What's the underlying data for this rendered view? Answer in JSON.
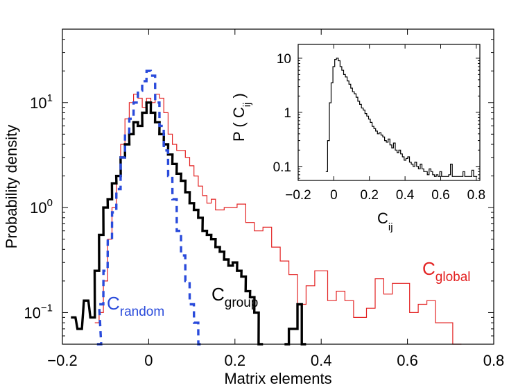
{
  "chart_data": [
    {
      "type": "line",
      "title": "",
      "xlabel": "Matrix elements",
      "ylabel": "Probability density",
      "xscale": "linear",
      "yscale": "log",
      "xlim": [
        -0.2,
        0.8
      ],
      "ylim": [
        0.05,
        50
      ],
      "xticks": [
        -0.2,
        0,
        0.2,
        0.4,
        0.6,
        0.8
      ],
      "xtick_labels": [
        "−0.2",
        "0",
        "0.2",
        "0.4",
        "0.6",
        "0.8"
      ],
      "yticks": [
        0.1,
        1,
        10
      ],
      "ytick_labels": [
        {
          "base": "10",
          "exp": "−1"
        },
        {
          "base": "10",
          "exp": "0"
        },
        {
          "base": "10",
          "exp": "1"
        }
      ],
      "series": [
        {
          "name": "C_global",
          "label": {
            "main": "C",
            "sub": "global"
          },
          "color": "#e32222",
          "style": "solid",
          "width": "thin",
          "label_position": "right",
          "x": [
            -0.12,
            -0.11,
            -0.1,
            -0.09,
            -0.08,
            -0.07,
            -0.06,
            -0.05,
            -0.04,
            -0.03,
            -0.02,
            -0.01,
            0.0,
            0.01,
            0.02,
            0.03,
            0.04,
            0.05,
            0.06,
            0.07,
            0.08,
            0.09,
            0.1,
            0.11,
            0.12,
            0.13,
            0.14,
            0.15,
            0.16,
            0.17,
            0.18,
            0.19,
            0.2,
            0.21,
            0.22,
            0.23,
            0.24,
            0.25,
            0.26,
            0.27,
            0.28,
            0.29,
            0.3,
            0.31,
            0.32,
            0.33,
            0.34,
            0.35,
            0.36,
            0.37,
            0.38,
            0.39,
            0.4,
            0.41,
            0.42,
            0.43,
            0.44,
            0.45,
            0.46,
            0.47,
            0.48,
            0.49,
            0.5,
            0.51,
            0.52,
            0.53,
            0.54,
            0.55,
            0.56,
            0.57,
            0.58,
            0.59,
            0.6,
            0.61,
            0.62,
            0.63,
            0.64,
            0.65,
            0.66,
            0.67,
            0.68,
            0.69,
            0.7,
            0.71,
            0.72
          ],
          "values": [
            0.08,
            0.1,
            0.2,
            0.5,
            1,
            2,
            4,
            7,
            10,
            12,
            11,
            9,
            11,
            10,
            12,
            11,
            8,
            5,
            4,
            3.5,
            3.5,
            3,
            2.5,
            2,
            1.6,
            1.3,
            1.1,
            1.2,
            0.95,
            0.95,
            1.0,
            1.0,
            1.0,
            1.08,
            1.08,
            0.72,
            0.72,
            0.6,
            0.6,
            0.65,
            0.65,
            0.42,
            0.42,
            0.31,
            0.31,
            0.23,
            0.23,
            0.12,
            0.12,
            0.18,
            0.18,
            0.25,
            0.25,
            0.25,
            0.13,
            0.13,
            0.16,
            0.16,
            0.13,
            0.13,
            0.09,
            0.09,
            0.09,
            0.11,
            0.11,
            0.21,
            0.21,
            0.15,
            0.15,
            0.19,
            0.19,
            0.19,
            0.19,
            0.1,
            0.1,
            0.12,
            0.12,
            0.13,
            0.13,
            0.08,
            0.08,
            0.08,
            0.08,
            0.05,
            0.05
          ]
        },
        {
          "name": "C_group",
          "label": {
            "main": "C",
            "sub": "group"
          },
          "color": "#000000",
          "style": "solid",
          "width": "thick",
          "x": [
            -0.175,
            -0.16,
            -0.145,
            -0.13,
            -0.12,
            -0.11,
            -0.1,
            -0.09,
            -0.08,
            -0.07,
            -0.06,
            -0.05,
            -0.04,
            -0.03,
            -0.02,
            -0.01,
            0.0,
            0.01,
            0.02,
            0.03,
            0.04,
            0.05,
            0.06,
            0.07,
            0.08,
            0.09,
            0.1,
            0.11,
            0.12,
            0.13,
            0.14,
            0.15,
            0.16,
            0.17,
            0.18,
            0.19,
            0.2,
            0.21,
            0.22,
            0.23,
            0.24,
            0.25,
            0.26
          ],
          "values": [
            0.09,
            0.07,
            0.13,
            0.09,
            0.25,
            0.55,
            1.0,
            1.2,
            1.7,
            2.0,
            3.0,
            4.0,
            5.0,
            6.5,
            6.0,
            8.0,
            10.0,
            8.0,
            6.5,
            5.0,
            4.0,
            3.2,
            2.6,
            2.1,
            1.8,
            1.4,
            1.1,
            0.95,
            0.8,
            0.6,
            0.55,
            0.5,
            0.42,
            0.38,
            0.32,
            0.28,
            0.3,
            0.25,
            0.22,
            0.16,
            0.14,
            0.1,
            0.05
          ],
          "extra_segments": [
            {
              "x": [
                0.32,
                0.33,
                0.34,
                0.35,
                0.36
              ],
              "values": [
                0.05,
                0.07,
                0.07,
                0.12,
                0.05
              ]
            }
          ]
        },
        {
          "name": "C_random",
          "label": {
            "main": "C",
            "sub": "random"
          },
          "color": "#2a4bdb",
          "style": "dashed",
          "width": "thick",
          "x": [
            -0.115,
            -0.11,
            -0.1,
            -0.09,
            -0.08,
            -0.07,
            -0.06,
            -0.05,
            -0.04,
            -0.03,
            -0.02,
            -0.01,
            0.0,
            0.01,
            0.02,
            0.03,
            0.04,
            0.05,
            0.06,
            0.07,
            0.08,
            0.09,
            0.1,
            0.11,
            0.12
          ],
          "values": [
            0.05,
            0.12,
            0.25,
            0.5,
            0.9,
            1.5,
            3.0,
            5.0,
            7.0,
            10.0,
            13.0,
            16.0,
            20.0,
            18.0,
            10.0,
            6.0,
            3.5,
            2.0,
            1.2,
            0.6,
            0.35,
            0.2,
            0.12,
            0.08,
            0.05
          ]
        }
      ]
    },
    {
      "type": "line",
      "role": "inset",
      "title": "",
      "xlabel": {
        "main": "C",
        "sub": "ij"
      },
      "ylabel": {
        "pre": "P ( C",
        "sub": "ij",
        "post": " )"
      },
      "xscale": "linear",
      "yscale": "log",
      "xlim": [
        -0.2,
        0.82
      ],
      "ylim": [
        0.055,
        18
      ],
      "xticks": [
        -0.2,
        0,
        0.2,
        0.4,
        0.6,
        0.8
      ],
      "xtick_labels": [
        "−0.2",
        "0",
        "0.2",
        "0.4",
        "0.6",
        "0.8"
      ],
      "yticks": [
        0.1,
        1,
        10
      ],
      "ytick_labels": [
        "0.1",
        "1",
        "10"
      ],
      "series": [
        {
          "name": "P(Cij)",
          "color": "#000000",
          "style": "solid",
          "x": [
            -0.04,
            -0.03,
            -0.02,
            -0.01,
            0.0,
            0.01,
            0.02,
            0.03,
            0.04,
            0.05,
            0.06,
            0.07,
            0.08,
            0.09,
            0.1,
            0.11,
            0.12,
            0.13,
            0.14,
            0.15,
            0.16,
            0.17,
            0.18,
            0.19,
            0.2,
            0.21,
            0.22,
            0.23,
            0.24,
            0.25,
            0.26,
            0.27,
            0.28,
            0.29,
            0.3,
            0.31,
            0.32,
            0.33,
            0.34,
            0.35,
            0.36,
            0.37,
            0.38,
            0.39,
            0.4,
            0.41,
            0.42,
            0.43,
            0.44,
            0.45,
            0.46,
            0.47,
            0.48,
            0.49,
            0.5,
            0.51,
            0.52,
            0.53,
            0.54,
            0.55,
            0.56,
            0.57,
            0.58,
            0.59,
            0.6,
            0.61,
            0.62,
            0.63,
            0.64,
            0.65,
            0.66,
            0.67,
            0.68,
            0.69,
            0.7,
            0.71,
            0.72,
            0.73,
            0.74,
            0.75,
            0.76,
            0.77,
            0.78,
            0.79,
            0.8
          ],
          "values": [
            0.08,
            0.3,
            1.5,
            3.5,
            7.0,
            9.5,
            10.0,
            9.0,
            7.0,
            6.0,
            5.0,
            4.5,
            3.8,
            3.3,
            2.8,
            2.4,
            2.2,
            1.9,
            1.6,
            1.4,
            1.2,
            1.1,
            0.95,
            0.85,
            0.75,
            0.65,
            0.55,
            0.5,
            0.45,
            0.4,
            0.42,
            0.38,
            0.35,
            0.3,
            0.28,
            0.32,
            0.25,
            0.22,
            0.27,
            0.2,
            0.18,
            0.2,
            0.17,
            0.15,
            0.13,
            0.14,
            0.15,
            0.12,
            0.11,
            0.1,
            0.12,
            0.1,
            0.09,
            0.11,
            0.09,
            0.08,
            0.08,
            0.07,
            0.09,
            0.08,
            0.07,
            0.065,
            0.07,
            0.065,
            0.08,
            0.065,
            0.065,
            0.065,
            0.065,
            0.07,
            0.11,
            0.065,
            0.065,
            0.065,
            0.065,
            0.065,
            0.065,
            0.08,
            0.065,
            0.065,
            0.065,
            0.065,
            0.085,
            0.065,
            0.065
          ]
        }
      ]
    }
  ]
}
